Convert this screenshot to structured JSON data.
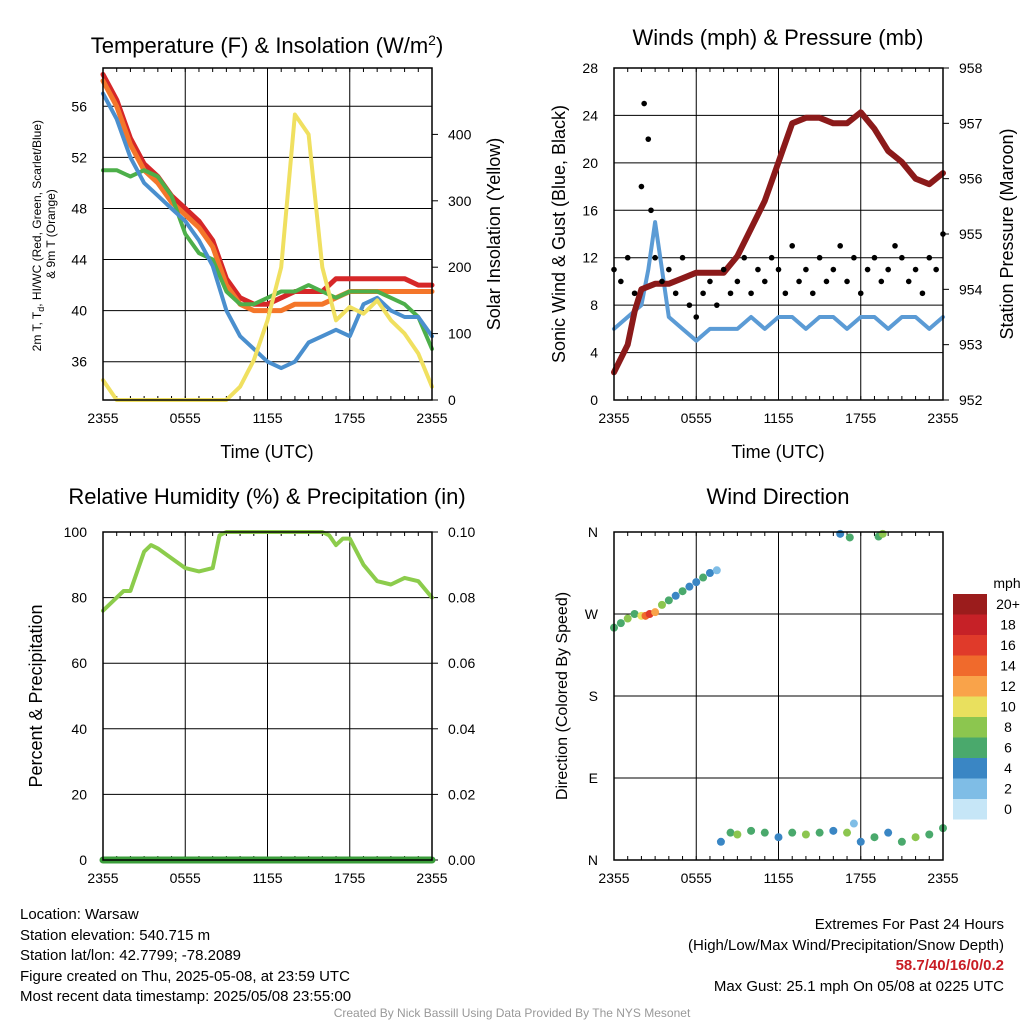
{
  "chart_data": [
    {
      "type": "line",
      "title": "Temperature (F) & Insolation (W/m²)",
      "xlabel": "Time (UTC)",
      "ylabel": "2m T, Td, HI/WC (Red, Green, Scarlet/Blue) & 9m T (Orange)",
      "y2label": "Solar Insolation (Yellow)",
      "x_ticks": [
        "2355",
        "0555",
        "1155",
        "1755",
        "2355"
      ],
      "x_hours": [
        0,
        6,
        12,
        18,
        24
      ],
      "ylim": [
        33,
        59
      ],
      "y_ticks": [
        36,
        40,
        44,
        48,
        52,
        56
      ],
      "y2lim": [
        0,
        500
      ],
      "y2_ticks": [
        0,
        100,
        200,
        300,
        400
      ],
      "grid": true,
      "series": [
        {
          "color": "#d62728",
          "axis": "left",
          "x": [
            0,
            1,
            2,
            3,
            4,
            5,
            6,
            7,
            8,
            9,
            10,
            11,
            12,
            13,
            14,
            15,
            16,
            17,
            18,
            19,
            20,
            21,
            22,
            23,
            24
          ],
          "values": [
            58.5,
            56.5,
            53.5,
            51.5,
            50.5,
            49,
            48,
            47,
            45.5,
            42.5,
            41,
            40.5,
            40.5,
            41,
            41.5,
            41.5,
            41.5,
            42.5,
            42.5,
            42.5,
            42.5,
            42.5,
            42.5,
            42,
            42
          ]
        },
        {
          "color": "#f4762a",
          "axis": "left",
          "x": [
            0,
            1,
            2,
            3,
            4,
            5,
            6,
            7,
            8,
            9,
            10,
            11,
            12,
            13,
            14,
            15,
            16,
            17,
            18,
            19,
            20,
            21,
            22,
            23,
            24
          ],
          "values": [
            58,
            56,
            53,
            51,
            50,
            48.5,
            47.5,
            46.5,
            45,
            42,
            40.5,
            40,
            40,
            40,
            40.5,
            40.5,
            40.5,
            41,
            41.5,
            41.5,
            41.5,
            41.5,
            41.5,
            41.5,
            41.5
          ]
        },
        {
          "color": "#4daf4a",
          "axis": "left",
          "x": [
            0,
            1,
            2,
            3,
            4,
            5,
            6,
            7,
            8,
            9,
            10,
            11,
            12,
            13,
            14,
            15,
            16,
            17,
            18,
            19,
            20,
            21,
            22,
            23,
            24
          ],
          "values": [
            51,
            51,
            50.5,
            51,
            50.5,
            49,
            46,
            44.5,
            44,
            41.5,
            40.5,
            40.5,
            41,
            41.5,
            41.5,
            42,
            41.5,
            41,
            41.5,
            41.5,
            41.5,
            41,
            40.5,
            39.5,
            37
          ]
        },
        {
          "color": "#4a8fce",
          "axis": "left",
          "x": [
            0,
            1,
            2,
            3,
            4,
            5,
            6,
            7,
            8,
            9,
            10,
            11,
            12,
            13,
            14,
            15,
            16,
            17,
            18,
            19,
            20,
            21,
            22,
            23,
            24
          ],
          "values": [
            57,
            55,
            52,
            50,
            49,
            48,
            47,
            45.5,
            43.5,
            40,
            38,
            37,
            36,
            35.5,
            36,
            37.5,
            38,
            38.5,
            38,
            40.5,
            41,
            40,
            39.5,
            39.5,
            38
          ]
        },
        {
          "color": "#f0e060",
          "axis": "right",
          "x": [
            0,
            1,
            2,
            3,
            4,
            5,
            6,
            7,
            8,
            9,
            10,
            11,
            12,
            13,
            14,
            15,
            16,
            17,
            18,
            19,
            20,
            21,
            22,
            23,
            24
          ],
          "values": [
            30,
            0,
            0,
            0,
            0,
            0,
            0,
            0,
            0,
            0,
            20,
            60,
            120,
            200,
            430,
            400,
            200,
            120,
            140,
            130,
            150,
            120,
            100,
            70,
            20
          ]
        }
      ]
    },
    {
      "type": "line",
      "title": "Winds (mph) & Pressure (mb)",
      "xlabel": "Time (UTC)",
      "ylabel": "Sonic Wind & Gust (Blue, Black)",
      "y2label": "Station Pressure (Maroon)",
      "x_ticks": [
        "2355",
        "0555",
        "1155",
        "1755",
        "2355"
      ],
      "x_hours": [
        0,
        6,
        12,
        18,
        24
      ],
      "ylim": [
        0,
        28
      ],
      "y_ticks": [
        0,
        4,
        8,
        12,
        16,
        20,
        24,
        28
      ],
      "y2lim": [
        952,
        958
      ],
      "y2_ticks": [
        952,
        953,
        954,
        955,
        956,
        957,
        958
      ],
      "grid": true,
      "series": [
        {
          "color": "#5b9bd5",
          "axis": "left",
          "x": [
            0,
            1,
            2,
            2.5,
            3,
            3.5,
            4,
            5,
            6,
            7,
            8,
            9,
            10,
            11,
            12,
            13,
            14,
            15,
            16,
            17,
            18,
            19,
            20,
            21,
            22,
            23,
            24
          ],
          "values": [
            6,
            7,
            8,
            11,
            15,
            11,
            7,
            6,
            5,
            6,
            6,
            6,
            7,
            6,
            7,
            7,
            6,
            7,
            7,
            6,
            7,
            7,
            6,
            7,
            7,
            6,
            7
          ]
        },
        {
          "color": "#8b1a1a",
          "axis": "right",
          "x": [
            0,
            1,
            1.5,
            2,
            3,
            4,
            5,
            6,
            7,
            8,
            9,
            10,
            11,
            12,
            13,
            14,
            15,
            16,
            17,
            18,
            19,
            20,
            21,
            22,
            23,
            24
          ],
          "values": [
            952.5,
            953,
            953.6,
            954,
            954.1,
            954.1,
            954.2,
            954.3,
            954.3,
            954.3,
            954.6,
            955.1,
            955.6,
            956.3,
            957,
            957.1,
            957.1,
            957.0,
            957.0,
            957.2,
            956.9,
            956.5,
            956.3,
            956.0,
            955.9,
            956.1
          ]
        },
        {
          "color": "#000000",
          "axis": "left",
          "mark": "scatter",
          "x": [
            0,
            0.5,
            1,
            1.5,
            2,
            2.2,
            2.5,
            2.7,
            3,
            3.5,
            4,
            4.5,
            5,
            5.5,
            6,
            6.5,
            7,
            7.5,
            8,
            8.5,
            9,
            9.5,
            10,
            10.5,
            11,
            11.5,
            12,
            12.5,
            13,
            13.5,
            14,
            14.5,
            15,
            15.5,
            16,
            16.5,
            17,
            17.5,
            18,
            18.5,
            19,
            19.5,
            20,
            20.5,
            21,
            21.5,
            22,
            22.5,
            23,
            23.5,
            24
          ],
          "values": [
            11,
            10,
            12,
            9,
            18,
            25,
            22,
            16,
            12,
            10,
            11,
            9,
            12,
            8,
            7,
            9,
            10,
            8,
            11,
            9,
            10,
            12,
            9,
            11,
            10,
            12,
            11,
            9,
            13,
            10,
            11,
            9,
            12,
            10,
            11,
            13,
            10,
            12,
            9,
            11,
            12,
            10,
            11,
            13,
            12,
            10,
            11,
            9,
            12,
            11,
            14
          ]
        }
      ]
    },
    {
      "type": "line",
      "title": "Relative Humidity (%) & Precipitation (in)",
      "ylabel": "Percent & Precipitation",
      "x_ticks": [
        "2355",
        "0555",
        "1155",
        "1755",
        "2355"
      ],
      "x_hours": [
        0,
        6,
        12,
        18,
        24
      ],
      "ylim": [
        0,
        100
      ],
      "y_ticks": [
        0,
        20,
        40,
        60,
        80,
        100
      ],
      "y2lim": [
        0,
        0.1
      ],
      "y2_ticks": [
        "0.00",
        "0.02",
        "0.04",
        "0.06",
        "0.08",
        "0.10"
      ],
      "grid": true,
      "series": [
        {
          "color": "#8ccc4c",
          "axis": "left",
          "x": [
            0,
            1,
            1.5,
            2,
            3,
            3.5,
            4,
            5,
            6,
            7,
            8,
            8.5,
            9,
            10,
            11,
            12,
            13,
            14,
            15,
            16,
            16.5,
            17,
            17.5,
            18,
            19,
            20,
            21,
            22,
            23,
            24
          ],
          "values": [
            76,
            80,
            82,
            82,
            94,
            96,
            95,
            92,
            89,
            88,
            89,
            99,
            100,
            100,
            100,
            100,
            100,
            100,
            100,
            100,
            99,
            96,
            98,
            98,
            90,
            85,
            84,
            86,
            85,
            80
          ]
        },
        {
          "color": "#3a9d3a",
          "axis": "right",
          "x": [
            0,
            24
          ],
          "values": [
            0,
            0
          ]
        }
      ]
    },
    {
      "type": "scatter",
      "title": "Wind Direction",
      "ylabel": "Direction (Colored By Speed)",
      "x_ticks": [
        "2355",
        "0555",
        "1155",
        "1755",
        "2355"
      ],
      "x_hours": [
        0,
        6,
        12,
        18,
        24
      ],
      "y_ticks": [
        "N",
        "E",
        "S",
        "W",
        "N"
      ],
      "y_tick_degrees": [
        0,
        90,
        180,
        270,
        360
      ],
      "ylim": [
        0,
        360
      ],
      "grid": true,
      "colorbar": {
        "unit": "mph",
        "labels": [
          "20+",
          "18",
          "16",
          "14",
          "12",
          "10",
          "8",
          "6",
          "4",
          "2",
          "0"
        ],
        "colors": [
          "#9b1c1c",
          "#c62127",
          "#e03a2a",
          "#f06a2c",
          "#f9a34a",
          "#e9e05e",
          "#8cc64f",
          "#4aa96c",
          "#3a86c4",
          "#7fbde6",
          "#c6e6f7"
        ]
      },
      "points": [
        {
          "x": 0,
          "y": 255,
          "c": 6
        },
        {
          "x": 0.5,
          "y": 260,
          "c": 6
        },
        {
          "x": 1,
          "y": 265,
          "c": 8
        },
        {
          "x": 1.5,
          "y": 270,
          "c": 6
        },
        {
          "x": 2,
          "y": 268,
          "c": 10
        },
        {
          "x": 2.3,
          "y": 268,
          "c": 14
        },
        {
          "x": 2.6,
          "y": 270,
          "c": 16
        },
        {
          "x": 3,
          "y": 272,
          "c": 12
        },
        {
          "x": 3.5,
          "y": 280,
          "c": 8
        },
        {
          "x": 4,
          "y": 285,
          "c": 6
        },
        {
          "x": 4.5,
          "y": 290,
          "c": 4
        },
        {
          "x": 5,
          "y": 295,
          "c": 6
        },
        {
          "x": 5.5,
          "y": 300,
          "c": 4
        },
        {
          "x": 6,
          "y": 305,
          "c": 4
        },
        {
          "x": 6.5,
          "y": 310,
          "c": 6
        },
        {
          "x": 7,
          "y": 315,
          "c": 4
        },
        {
          "x": 7.5,
          "y": 318,
          "c": 2
        },
        {
          "x": 7.8,
          "y": 20,
          "c": 4
        },
        {
          "x": 8.5,
          "y": 30,
          "c": 6
        },
        {
          "x": 9,
          "y": 28,
          "c": 8
        },
        {
          "x": 10,
          "y": 32,
          "c": 6
        },
        {
          "x": 11,
          "y": 30,
          "c": 6
        },
        {
          "x": 12,
          "y": 25,
          "c": 4
        },
        {
          "x": 13,
          "y": 30,
          "c": 6
        },
        {
          "x": 14,
          "y": 28,
          "c": 8
        },
        {
          "x": 15,
          "y": 30,
          "c": 6
        },
        {
          "x": 16,
          "y": 32,
          "c": 4
        },
        {
          "x": 17,
          "y": 30,
          "c": 8
        },
        {
          "x": 17.5,
          "y": 40,
          "c": 2
        },
        {
          "x": 18,
          "y": 20,
          "c": 4
        },
        {
          "x": 19,
          "y": 25,
          "c": 6
        },
        {
          "x": 20,
          "y": 30,
          "c": 4
        },
        {
          "x": 21,
          "y": 20,
          "c": 6
        },
        {
          "x": 22,
          "y": 25,
          "c": 8
        },
        {
          "x": 23,
          "y": 28,
          "c": 6
        },
        {
          "x": 24,
          "y": 35,
          "c": 6
        },
        {
          "x": 16.5,
          "y": 358,
          "c": 4
        },
        {
          "x": 17.2,
          "y": 354,
          "c": 6
        },
        {
          "x": 19.3,
          "y": 355,
          "c": 6
        },
        {
          "x": 19.6,
          "y": 358,
          "c": 8
        }
      ]
    }
  ],
  "footer": {
    "location": "Location: Warsaw",
    "elevation": "Station elevation: 540.715 m",
    "latlon": "Station lat/lon: 42.7799; -78.2089",
    "created": "Figure created on Thu, 2025-05-08, at 23:59 UTC",
    "recent": "Most recent data timestamp: 2025/05/08 23:55:00",
    "extremes_title": "Extremes For Past 24 Hours",
    "extremes_sub": "(High/Low/Max Wind/Precipitation/Snow Depth)",
    "extremes_values": "58.7/40/16/0/0.2",
    "max_gust": "Max Gust: 25.1 mph On 05/08 at 0225 UTC",
    "credit": "Created By Nick Bassill Using Data Provided By The NYS Mesonet"
  }
}
